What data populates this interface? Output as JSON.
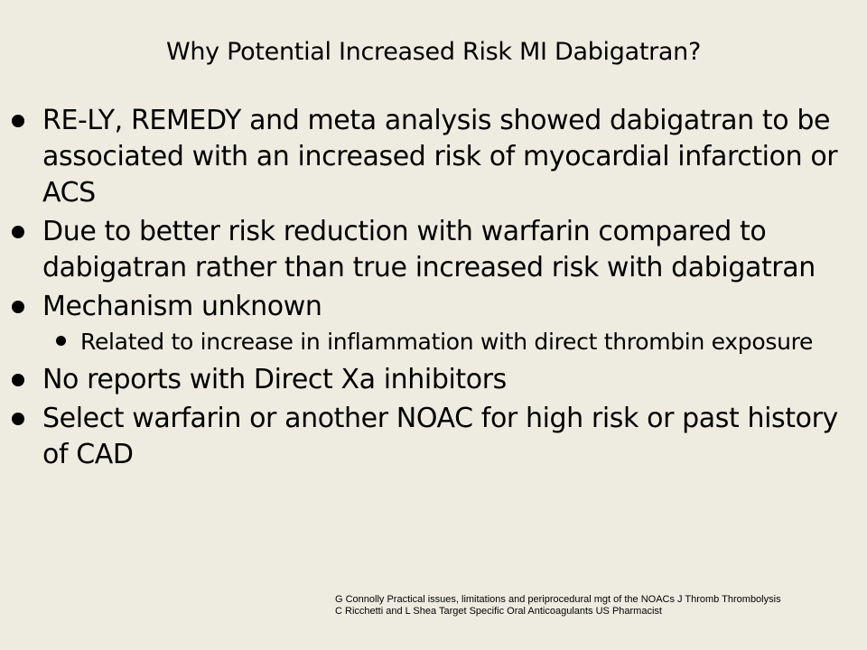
{
  "slide": {
    "title": "Why Potential Increased Risk MI Dabigatran?",
    "bullets": [
      "RE-LY, REMEDY and meta analysis showed dabigatran to be associated with an increased risk of myocardial infarction or ACS",
      "Due to better risk reduction with warfarin compared to dabigatran rather than true increased risk with dabigatran",
      "Mechanism unknown",
      "No reports with Direct Xa inhibitors",
      "Select warfarin or another NOAC for high risk or past history of CAD"
    ],
    "sub_bullets": [
      "Related to increase in inflammation with direct thrombin exposure"
    ],
    "references": [
      "G Connolly Practical issues, limitations and periprocedural mgt of the NOACs J Thromb Thrombolysis",
      "C Ricchetti and L Shea Target Specific Oral Anticoagulants US Pharmacist"
    ]
  }
}
